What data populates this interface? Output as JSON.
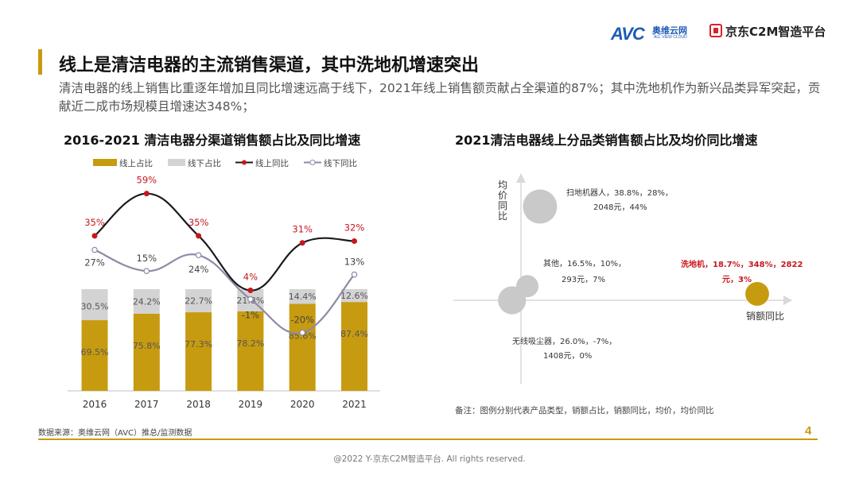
{
  "header": {
    "avc_logo": "AVC",
    "avc_cn": "奥维云网",
    "avc_en": "ALL VIEW CLOUD",
    "jd_logo": "京东C2M智造平台"
  },
  "page": {
    "title": "线上是清洁电器的主流销售渠道，其中洗地机增速突出",
    "subtitle": "清洁电器的线上销售比重逐年增加且同比增速远高于线下，2021年线上销售额贡献占全渠道的87%；其中洗地机作为新兴品类异军突起，贡献近二成市场规模且增速达348%；",
    "source": "数据来源：奥维云网（AVC）推总/监测数据",
    "page_number": "4",
    "footer": "@2022 Y-京东C2M智造平台. All rights reserved.",
    "note": "备注：图例分别代表产品类型，销额占比，销额同比，均价，均价同比"
  },
  "colors": {
    "accent": "#c79b0f",
    "offline_share": "#d3d3d3",
    "online_yoy": "#1a1a1a",
    "offline_yoy": "#8e8aa6",
    "marker_red": "#c8161d",
    "bubble_gray": "#c9c9c9",
    "highlight_text": "#c8161d"
  },
  "chart_data": [
    {
      "type": "bar",
      "title": "2016-2021 清洁电器分渠道销售额占比及同比增速",
      "categories": [
        "2016",
        "2017",
        "2018",
        "2019",
        "2020",
        "2021"
      ],
      "legend": [
        "线上占比",
        "线下占比",
        "线上同比",
        "线下同比"
      ],
      "legend_position": "top",
      "series": [
        {
          "name": "线上占比",
          "kind": "stacked-bar",
          "values": [
            69.5,
            75.8,
            77.3,
            78.2,
            85.6,
            87.4
          ],
          "labels": [
            "69.5%",
            "75.8%",
            "77.3%",
            "78.2%",
            "85.6%",
            "87.4%"
          ]
        },
        {
          "name": "线下占比",
          "kind": "stacked-bar",
          "values": [
            30.5,
            24.2,
            22.7,
            21.8,
            14.4,
            12.6
          ],
          "labels": [
            "30.5%",
            "24.2%",
            "22.7%",
            "21.8%",
            "14.4%",
            "12.6%"
          ]
        },
        {
          "name": "线上同比",
          "kind": "line",
          "values": [
            35,
            59,
            35,
            4,
            31,
            32
          ],
          "labels": [
            "35%",
            "59%",
            "35%",
            "4%",
            "31%",
            "32%"
          ]
        },
        {
          "name": "线下同比",
          "kind": "line",
          "values": [
            27,
            15,
            24,
            -1,
            -20,
            13
          ],
          "labels": [
            "27%",
            "15%",
            "24%",
            "-1%",
            "-20%",
            "13%"
          ]
        }
      ],
      "ylim_share": [
        0,
        100
      ],
      "ylim_yoy": [
        -40,
        90
      ],
      "grid": false
    },
    {
      "type": "scatter",
      "title": "2021清洁电器线上分品类销售额占比及均价同比增速",
      "xlabel": "销额同比",
      "ylabel": "均价同比",
      "xlim": [
        -50,
        400
      ],
      "ylim": [
        -60,
        80
      ],
      "points": [
        {
          "name": "扫地机器人",
          "share": 38.8,
          "sales_yoy": 28,
          "avg_price": 2048,
          "price_yoy": 44,
          "label_line1": "扫地机器人，38.8%，28%，",
          "label_line2": "2048元，44%",
          "highlight": false
        },
        {
          "name": "其他",
          "share": 16.5,
          "sales_yoy": 10,
          "avg_price": 293,
          "price_yoy": 7,
          "label_line1": "其他，16.5%，10%，",
          "label_line2": "293元，7%",
          "highlight": false
        },
        {
          "name": "无线吸尘器",
          "share": 26.0,
          "sales_yoy": -7,
          "avg_price": 1408,
          "price_yoy": 0,
          "label_line1": "无线吸尘器，26.0%，-7%，",
          "label_line2": "1408元，0%",
          "highlight": false
        },
        {
          "name": "洗地机",
          "share": 18.7,
          "sales_yoy": 348,
          "avg_price": 2822,
          "price_yoy": 3,
          "label_line1": "洗地机，18.7%，348%，2822",
          "label_line2": "元，3%",
          "highlight": true
        }
      ]
    }
  ]
}
